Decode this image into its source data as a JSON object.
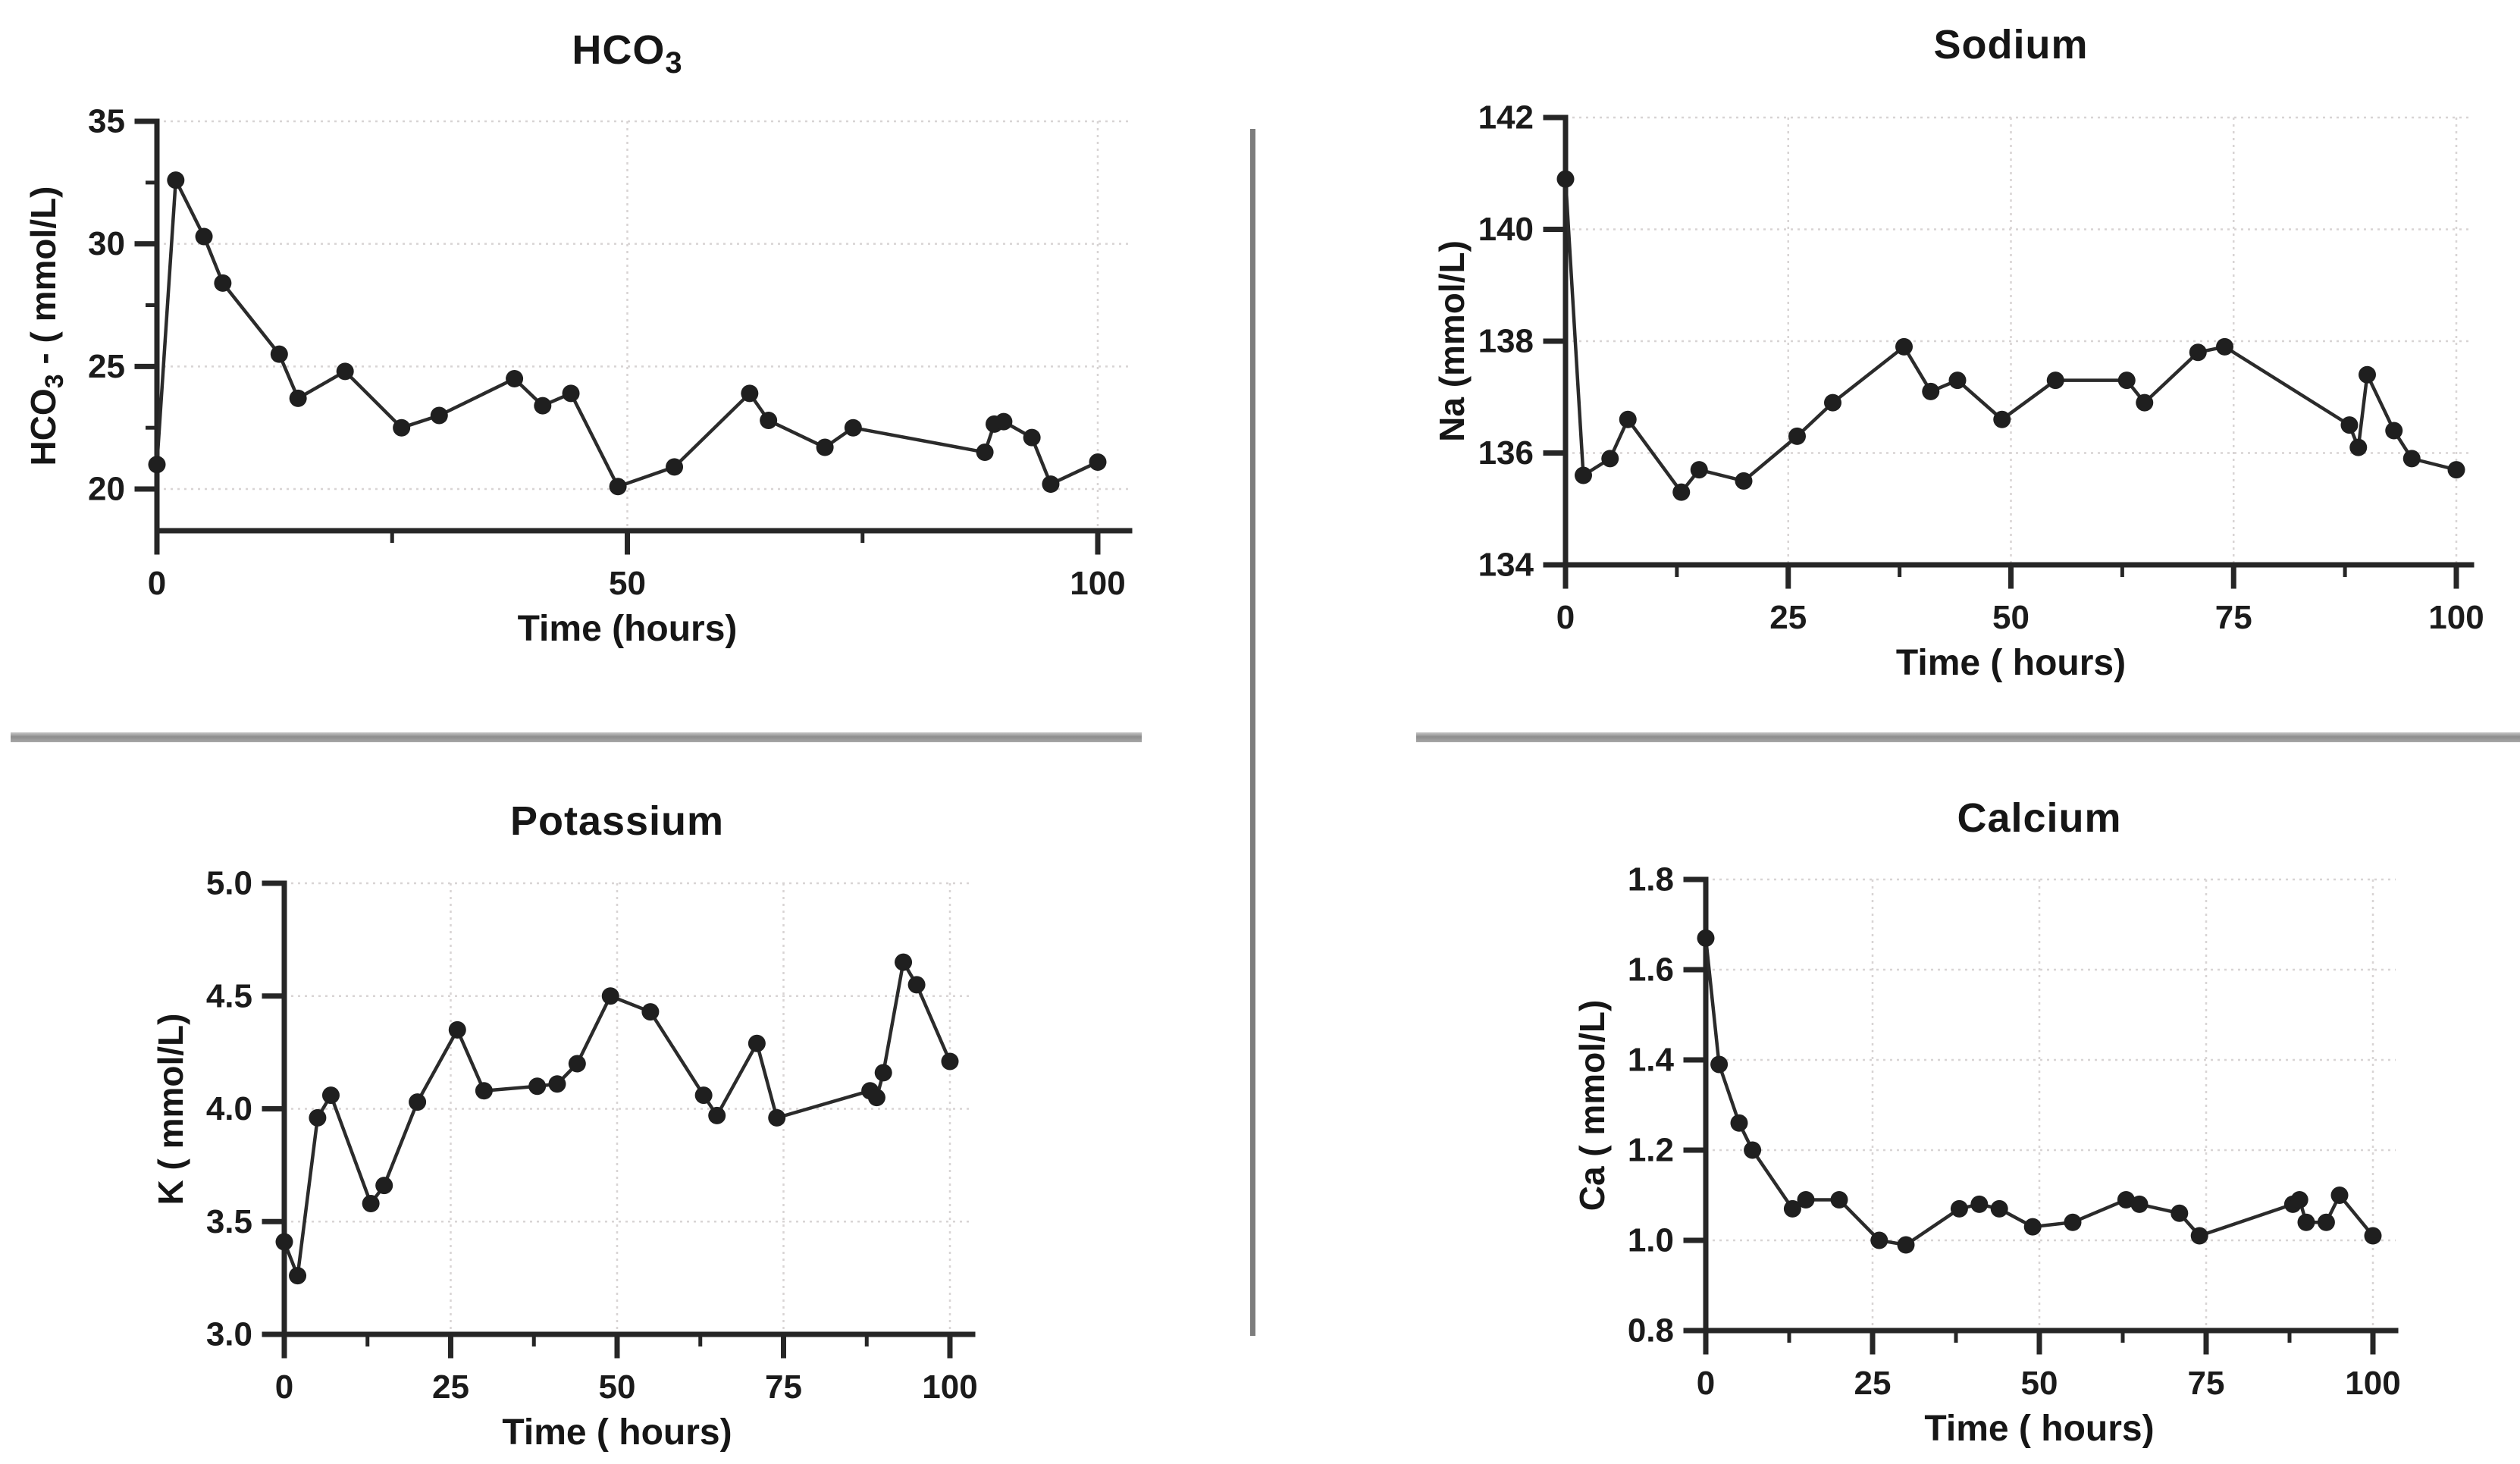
{
  "chart_data": [
    {
      "type": "line",
      "title": "HCO₃",
      "title_pre": "HCO",
      "title_sub": "3",
      "xlabel": "Time (hours)",
      "ylabel": "HCO₃ - ( mmol/L)",
      "ylabel_pre": "HCO",
      "ylabel_sub": "3",
      "ylabel_post": " - ( mmol/L)",
      "xlim": [
        0,
        100
      ],
      "ylim": [
        18.3,
        35
      ],
      "x_ticks": [
        0,
        50,
        100
      ],
      "x_tick_labels": [
        "0",
        "50",
        "100"
      ],
      "x_minor_ticks": [
        25,
        75
      ],
      "x_gridlines": [
        50,
        100
      ],
      "y_ticks": [
        20,
        25,
        30,
        35
      ],
      "y_tick_labels": [
        "20",
        "25",
        "30",
        "35"
      ],
      "y_minor_ticks": [
        22.5,
        27.5,
        32.5
      ],
      "y_gridlines": [
        20,
        25,
        30,
        35
      ],
      "x": [
        0,
        2,
        5,
        7,
        13,
        15,
        20,
        26,
        30,
        38,
        41,
        44,
        49,
        55,
        63,
        65,
        71,
        74,
        88,
        89,
        90,
        93,
        95,
        100
      ],
      "y": [
        21.0,
        32.6,
        30.3,
        28.4,
        25.5,
        23.7,
        24.8,
        22.5,
        23.0,
        24.5,
        23.4,
        23.9,
        20.1,
        20.9,
        23.9,
        22.8,
        21.7,
        22.5,
        21.5,
        22.65,
        22.75,
        22.1,
        20.2,
        21.1
      ],
      "legend": "none",
      "grid": "dotted"
    },
    {
      "type": "line",
      "title": "Sodium",
      "title_pre": "Sodium",
      "title_sub": "",
      "xlabel": "Time ( hours)",
      "ylabel": "Na (mmol/L)",
      "ylabel_pre": "Na (mmol/L)",
      "ylabel_sub": "",
      "ylabel_post": "",
      "xlim": [
        0,
        100
      ],
      "ylim": [
        134,
        142
      ],
      "x_ticks": [
        0,
        25,
        50,
        75,
        100
      ],
      "x_tick_labels": [
        "0",
        "25",
        "50",
        "75",
        "100"
      ],
      "x_minor_ticks": [
        12.5,
        37.5,
        62.5,
        87.5
      ],
      "x_gridlines": [
        25,
        50,
        75,
        100
      ],
      "y_ticks": [
        134,
        136,
        138,
        140,
        142
      ],
      "y_tick_labels": [
        "134",
        "136",
        "138",
        "140",
        "142"
      ],
      "y_minor_ticks": [],
      "y_gridlines": [
        136,
        138,
        140,
        142
      ],
      "x": [
        0,
        2,
        5,
        7,
        13,
        15,
        20,
        26,
        30,
        38,
        41,
        44,
        49,
        55,
        63,
        65,
        71,
        74,
        88,
        89,
        90,
        93,
        95,
        100
      ],
      "y": [
        140.9,
        135.6,
        135.9,
        136.6,
        135.3,
        135.7,
        135.5,
        136.3,
        136.9,
        137.9,
        137.1,
        137.3,
        136.6,
        137.3,
        137.3,
        136.9,
        137.8,
        137.9,
        136.5,
        136.1,
        137.4,
        136.4,
        135.9,
        135.7
      ],
      "legend": "none",
      "grid": "dotted"
    },
    {
      "type": "line",
      "title": "Potassium",
      "title_pre": "Potassium",
      "title_sub": "",
      "xlabel": "Time ( hours)",
      "ylabel": "K ( mmol/L)",
      "ylabel_pre": "K ( mmol/L)",
      "ylabel_sub": "",
      "ylabel_post": "",
      "xlim": [
        0,
        100
      ],
      "ylim": [
        3.0,
        5.0
      ],
      "x_ticks": [
        0,
        25,
        50,
        75,
        100
      ],
      "x_tick_labels": [
        "0",
        "25",
        "50",
        "75",
        "100"
      ],
      "x_minor_ticks": [
        12.5,
        37.5,
        62.5,
        87.5
      ],
      "x_gridlines": [
        25,
        50,
        75,
        100
      ],
      "y_ticks": [
        3.0,
        3.5,
        4.0,
        4.5,
        5.0
      ],
      "y_tick_labels": [
        "3.0",
        "3.5",
        "4.0",
        "4.5",
        "5.0"
      ],
      "y_minor_ticks": [],
      "y_gridlines": [
        3.5,
        4.0,
        4.5,
        5.0
      ],
      "x": [
        0,
        2,
        5,
        7,
        13,
        15,
        20,
        26,
        30,
        38,
        41,
        44,
        49,
        55,
        63,
        65,
        71,
        74,
        88,
        89,
        90,
        93,
        95,
        100
      ],
      "y": [
        3.41,
        3.26,
        3.96,
        4.06,
        3.58,
        3.66,
        4.03,
        4.35,
        4.08,
        4.1,
        4.11,
        4.2,
        4.5,
        4.43,
        4.06,
        3.97,
        4.29,
        3.96,
        4.08,
        4.05,
        4.16,
        4.65,
        4.55,
        4.21
      ],
      "legend": "none",
      "grid": "dotted"
    },
    {
      "type": "line",
      "title": "Calcium",
      "title_pre": "Calcium",
      "title_sub": "",
      "xlabel": "Time ( hours)",
      "ylabel": "Ca ( mmol/L)",
      "ylabel_pre": "Ca ( mmol/L)",
      "ylabel_sub": "",
      "ylabel_post": "",
      "xlim": [
        0,
        100
      ],
      "ylim": [
        0.8,
        1.8
      ],
      "x_ticks": [
        0,
        25,
        50,
        75,
        100
      ],
      "x_tick_labels": [
        "0",
        "25",
        "50",
        "75",
        "100"
      ],
      "x_minor_ticks": [
        12.5,
        37.5,
        62.5,
        87.5
      ],
      "x_gridlines": [
        25,
        50,
        75,
        100
      ],
      "y_ticks": [
        0.8,
        1.0,
        1.2,
        1.4,
        1.6,
        1.8
      ],
      "y_tick_labels": [
        "0.8",
        "1.0",
        "1.2",
        "1.4",
        "1.6",
        "1.8"
      ],
      "y_minor_ticks": [],
      "y_gridlines": [
        1.0,
        1.2,
        1.4,
        1.6,
        1.8
      ],
      "x": [
        0,
        2,
        5,
        7,
        13,
        15,
        20,
        26,
        30,
        38,
        41,
        44,
        49,
        55,
        63,
        65,
        71,
        74,
        88,
        89,
        90,
        93,
        95,
        100
      ],
      "y": [
        1.67,
        1.39,
        1.26,
        1.2,
        1.07,
        1.09,
        1.09,
        1.0,
        0.99,
        1.07,
        1.08,
        1.07,
        1.03,
        1.04,
        1.09,
        1.08,
        1.06,
        1.01,
        1.08,
        1.09,
        1.04,
        1.04,
        1.1,
        1.01
      ],
      "legend": "none",
      "grid": "dotted"
    }
  ]
}
